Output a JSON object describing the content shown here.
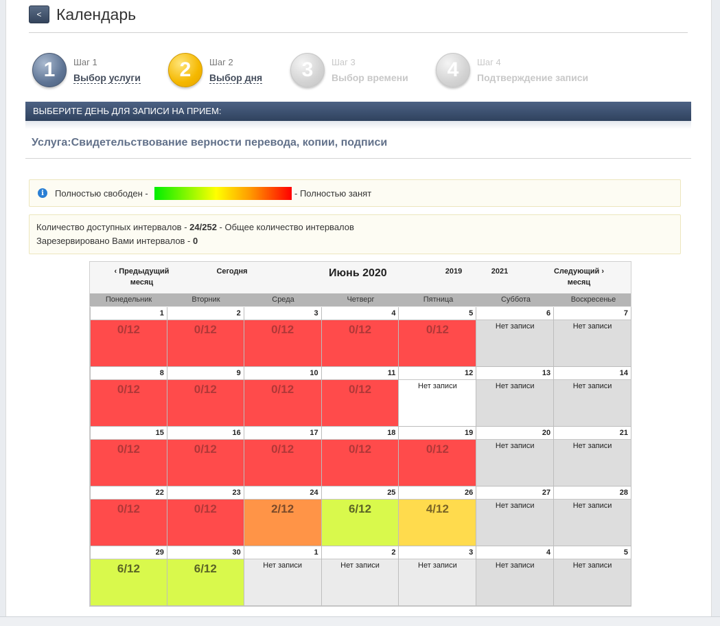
{
  "header": {
    "back_label": "<",
    "title": "Календарь"
  },
  "steps": [
    {
      "number": "1",
      "label": "Шаг 1",
      "name": "Выбор услуги",
      "state": "done"
    },
    {
      "number": "2",
      "label": "Шаг 2",
      "name": "Выбор дня",
      "state": "current"
    },
    {
      "number": "3",
      "label": "Шаг 3",
      "name": "Выбор времени",
      "state": "disabled"
    },
    {
      "number": "4",
      "label": "Шаг 4",
      "name": "Подтверждение записи",
      "state": "disabled"
    }
  ],
  "section": {
    "heading": "ВЫБЕРИТЕ ДЕНЬ ДЛЯ ЗАПИСИ НА ПРИЕМ:",
    "service": "Услуга:Свидетельствование верности перевода, копии, подписи"
  },
  "legend": {
    "free_label": "Полностью свободен -",
    "busy_label": "- Полностью занят",
    "colors": {
      "free": "#00ee00",
      "mid": "#ffff00",
      "busy": "#ff0000"
    }
  },
  "stats": {
    "available_prefix": "Количество доступных интервалов -",
    "available_value": "24/252",
    "available_suffix": "- Общее количество интервалов",
    "reserved_prefix": "Зарезервировано Вами интервалов -",
    "reserved_value": "0"
  },
  "calendar": {
    "prev_month": "‹ Предыдущий месяц",
    "today": "Сегодня",
    "month_title": "Июнь 2020",
    "prev_year": "2019",
    "next_year": "2021",
    "next_month": "Следующий › месяц",
    "weekdays": [
      "Понедельник",
      "Вторник",
      "Среда",
      "Четверг",
      "Пятница",
      "Суббота",
      "Воскресенье"
    ],
    "no_record": "Нет записи",
    "weeks": [
      [
        {
          "day": "1",
          "slots": "0/12",
          "status": "red"
        },
        {
          "day": "2",
          "slots": "0/12",
          "status": "red"
        },
        {
          "day": "3",
          "slots": "0/12",
          "status": "red"
        },
        {
          "day": "4",
          "slots": "0/12",
          "status": "red"
        },
        {
          "day": "5",
          "slots": "0/12",
          "status": "red"
        },
        {
          "day": "6",
          "slots": "Нет записи",
          "status": "weekend"
        },
        {
          "day": "7",
          "slots": "Нет записи",
          "status": "weekend"
        }
      ],
      [
        {
          "day": "8",
          "slots": "0/12",
          "status": "red"
        },
        {
          "day": "9",
          "slots": "0/12",
          "status": "red"
        },
        {
          "day": "10",
          "slots": "0/12",
          "status": "red"
        },
        {
          "day": "11",
          "slots": "0/12",
          "status": "red"
        },
        {
          "day": "12",
          "slots": "Нет записи",
          "status": "white"
        },
        {
          "day": "13",
          "slots": "Нет записи",
          "status": "weekend"
        },
        {
          "day": "14",
          "slots": "Нет записи",
          "status": "weekend"
        }
      ],
      [
        {
          "day": "15",
          "slots": "0/12",
          "status": "red"
        },
        {
          "day": "16",
          "slots": "0/12",
          "status": "red"
        },
        {
          "day": "17",
          "slots": "0/12",
          "status": "red"
        },
        {
          "day": "18",
          "slots": "0/12",
          "status": "red"
        },
        {
          "day": "19",
          "slots": "0/12",
          "status": "red"
        },
        {
          "day": "20",
          "slots": "Нет записи",
          "status": "weekend"
        },
        {
          "day": "21",
          "slots": "Нет записи",
          "status": "weekend"
        }
      ],
      [
        {
          "day": "22",
          "slots": "0/12",
          "status": "red"
        },
        {
          "day": "23",
          "slots": "0/12",
          "status": "red"
        },
        {
          "day": "24",
          "slots": "2/12",
          "status": "orange"
        },
        {
          "day": "25",
          "slots": "6/12",
          "status": "lime"
        },
        {
          "day": "26",
          "slots": "4/12",
          "status": "yellow"
        },
        {
          "day": "27",
          "slots": "Нет записи",
          "status": "weekend"
        },
        {
          "day": "28",
          "slots": "Нет записи",
          "status": "weekend"
        }
      ],
      [
        {
          "day": "29",
          "slots": "6/12",
          "status": "lime"
        },
        {
          "day": "30",
          "slots": "6/12",
          "status": "lime"
        },
        {
          "day": "1",
          "slots": "Нет записи",
          "status": "next"
        },
        {
          "day": "2",
          "slots": "Нет записи",
          "status": "next"
        },
        {
          "day": "3",
          "slots": "Нет записи",
          "status": "next"
        },
        {
          "day": "4",
          "slots": "Нет записи",
          "status": "weekend"
        },
        {
          "day": "5",
          "slots": "Нет записи",
          "status": "weekend"
        }
      ]
    ]
  }
}
